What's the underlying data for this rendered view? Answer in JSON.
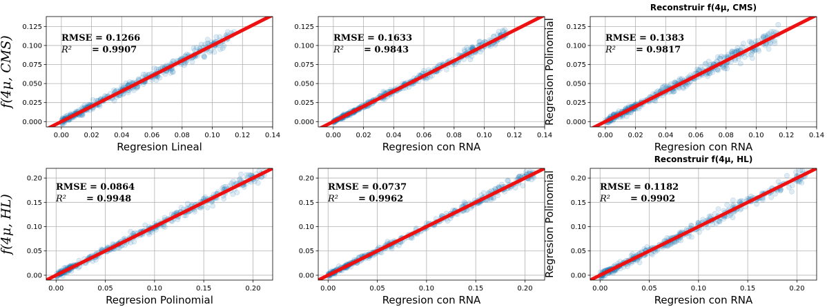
{
  "chart_data": [
    {
      "type": "scatter",
      "xlabel": "Regresion Lineal",
      "ylabel": "f(4μ, CMS)",
      "title": "",
      "xlim": [
        -0.01,
        0.14
      ],
      "ylim": [
        -0.007,
        0.138
      ],
      "xticks": [
        "0.00",
        "0.02",
        "0.04",
        "0.06",
        "0.08",
        "0.10",
        "0.12",
        "0.14"
      ],
      "yticks": [
        "0.000",
        "0.025",
        "0.050",
        "0.075",
        "0.100",
        "0.125"
      ],
      "grid": true,
      "rmse_text": "RMSE = 0.1266",
      "r2_label": "R²",
      "r2_text": "= 0.9907",
      "reference_line": "y = x",
      "x_max": 0.115,
      "spread": 0.0035
    },
    {
      "type": "scatter",
      "xlabel": "Regresion con RNA",
      "ylabel": "",
      "title": "",
      "xlim": [
        -0.01,
        0.14
      ],
      "ylim": [
        -0.007,
        0.138
      ],
      "xticks": [
        "0.00",
        "0.02",
        "0.04",
        "0.06",
        "0.08",
        "0.10",
        "0.12",
        "0.14"
      ],
      "yticks": [
        "0.000",
        "0.025",
        "0.050",
        "0.075",
        "0.100",
        "0.125"
      ],
      "grid": true,
      "rmse_text": "RMSE = 0.1633",
      "r2_label": "R²",
      "r2_text": "= 0.9843",
      "reference_line": "y = x",
      "x_max": 0.115,
      "spread": 0.0025
    },
    {
      "type": "scatter",
      "xlabel": "Regresion con RNA",
      "ylabel": "Regresion Polinomial",
      "title": "Reconstruir f(4μ, CMS)",
      "xlim": [
        -0.01,
        0.14
      ],
      "ylim": [
        -0.007,
        0.138
      ],
      "xticks": [
        "0.00",
        "0.02",
        "0.04",
        "0.06",
        "0.08",
        "0.10",
        "0.12",
        "0.14"
      ],
      "yticks": [
        "0.000",
        "0.025",
        "0.050",
        "0.075",
        "0.100",
        "0.125"
      ],
      "grid": true,
      "rmse_text": "RMSE = 0.1383",
      "r2_label": "R²",
      "r2_text": "= 0.9817",
      "reference_line": "y = x",
      "x_max": 0.115,
      "spread": 0.004
    },
    {
      "type": "scatter",
      "xlabel": "Regresion Polinomial",
      "ylabel": "f(4μ, HL)",
      "title": "",
      "xlim": [
        -0.01,
        0.22
      ],
      "ylim": [
        -0.01,
        0.22
      ],
      "xticks": [
        "0.00",
        "0.05",
        "0.10",
        "0.15",
        "0.20"
      ],
      "yticks": [
        "0.00",
        "0.05",
        "0.10",
        "0.15",
        "0.20"
      ],
      "grid": true,
      "rmse_text": "RMSE = 0.0864",
      "r2_label": "R²",
      "r2_text": "= 0.9948",
      "reference_line": "y = x",
      "x_max": 0.215,
      "spread": 0.005
    },
    {
      "type": "scatter",
      "xlabel": "Regresion con RNA",
      "ylabel": "",
      "title": "",
      "xlim": [
        -0.01,
        0.22
      ],
      "ylim": [
        -0.01,
        0.22
      ],
      "xticks": [
        "0.00",
        "0.05",
        "0.10",
        "0.15",
        "0.20"
      ],
      "yticks": [
        "0.00",
        "0.05",
        "0.10",
        "0.15",
        "0.20"
      ],
      "grid": true,
      "rmse_text": "RMSE = 0.0737",
      "r2_label": "R²",
      "r2_text": "= 0.9962",
      "reference_line": "y = x",
      "x_max": 0.21,
      "spread": 0.004
    },
    {
      "type": "scatter",
      "xlabel": "Regresion con RNA",
      "ylabel": "Regresion Polinomial",
      "title": "Reconstruir f(4μ, HL)",
      "xlim": [
        -0.01,
        0.22
      ],
      "ylim": [
        -0.01,
        0.22
      ],
      "xticks": [
        "0.00",
        "0.05",
        "0.10",
        "0.15",
        "0.20"
      ],
      "yticks": [
        "0.00",
        "0.05",
        "0.10",
        "0.15",
        "0.20"
      ],
      "grid": true,
      "rmse_text": "RMSE = 0.1182",
      "r2_label": "R²",
      "r2_text": "= 0.9902",
      "reference_line": "y = x",
      "x_max": 0.21,
      "spread": 0.006
    }
  ],
  "colors": {
    "points": "#1f77b4",
    "reference_line": "#ee1111",
    "grid": "#b0b0b0"
  }
}
